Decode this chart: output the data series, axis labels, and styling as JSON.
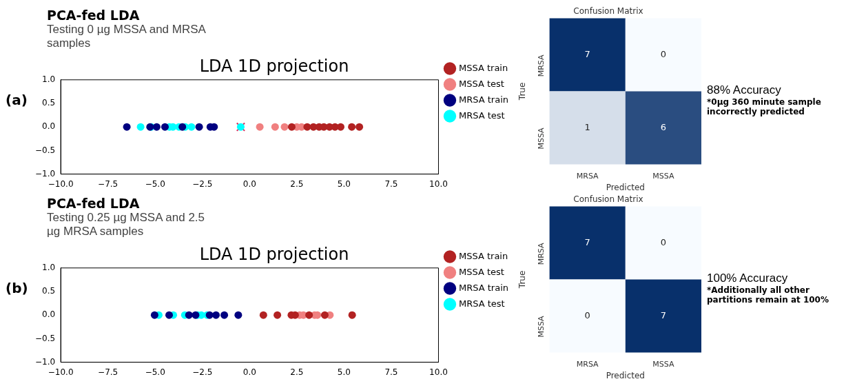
{
  "chart_data": [
    {
      "type": "scatter",
      "title": "LDA 1D projection",
      "subtitle": "Testing 0 µg MSSA and MRSA samples",
      "annotations": [
        "(a)",
        "PCA-fed LDA"
      ],
      "legend": "right",
      "marker": "circle",
      "xlim": [
        -10,
        10
      ],
      "xticks": [
        {
          "value": -10,
          "label": "−10.0"
        },
        {
          "value": -7.5,
          "label": "−7.5"
        },
        {
          "value": -5,
          "label": "−5.0"
        },
        {
          "value": -2.5,
          "label": "−2.5"
        },
        {
          "value": 0,
          "label": "0.0"
        },
        {
          "value": 2.5,
          "label": "2.5"
        },
        {
          "value": 5,
          "label": "5.0"
        },
        {
          "value": 7.5,
          "label": "7.5"
        },
        {
          "value": 10,
          "label": "10.0"
        }
      ],
      "ylim": [
        -1,
        1
      ],
      "yticks": [
        {
          "value": -1,
          "label": "−1.0"
        },
        {
          "value": -0.5,
          "label": "−0.5"
        },
        {
          "value": 0,
          "label": "0.0"
        },
        {
          "value": 0.5,
          "label": "0.5"
        },
        {
          "value": 1,
          "label": "1.0"
        }
      ],
      "series": [
        {
          "name": "MSSA train",
          "color": "#b22222",
          "x": [
            2.23,
            3.05,
            3.38,
            3.68,
            3.93,
            4.23,
            4.52,
            4.82,
            5.41,
            5.81
          ],
          "values": [
            0,
            0,
            0,
            0,
            0,
            0,
            0,
            0,
            0,
            0
          ]
        },
        {
          "name": "MSSA test",
          "color": "#f08080",
          "x": [
            0.54,
            1.35,
            1.85,
            2.5,
            2.75
          ],
          "values": [
            0,
            0,
            0,
            0,
            0
          ]
        },
        {
          "name": "MRSA train",
          "color": "#000080",
          "x": [
            -6.5,
            -5.27,
            -4.92,
            -4.48,
            -3.56,
            -2.67,
            -2.08,
            -1.88
          ],
          "values": [
            0,
            0,
            0,
            0,
            0,
            0,
            0,
            0
          ]
        },
        {
          "name": "MRSA test",
          "color": "#00ffff",
          "x": [
            -5.77,
            -5.21,
            -4.24,
            -4.06,
            -3.74,
            -3.41,
            -3.08,
            -0.47
          ],
          "values": [
            0,
            0,
            0,
            0,
            0,
            0,
            0,
            0
          ]
        },
        {
          "color": "#d62a5c",
          "marker": "cross",
          "x": [
            -0.47
          ],
          "values": [
            0
          ]
        }
      ]
    },
    {
      "type": "heatmap",
      "title": "Confusion Matrix",
      "xlabel": "Predicted",
      "ylabel": "True",
      "categories": [
        "MRSA",
        "MSSA"
      ],
      "y_categories": [
        "MRSA",
        "MSSA"
      ],
      "cells": [
        [
          7,
          0
        ],
        [
          1,
          6
        ]
      ],
      "data_labels": true,
      "annotations": [
        "88% Accuracy",
        "*0µg 360 minute sample incorrectly predicted"
      ]
    },
    {
      "type": "scatter",
      "title": "LDA 1D projection",
      "subtitle": "Testing 0.25 µg MSSA and 2.5 µg MRSA samples",
      "annotations": [
        "(b)",
        "PCA-fed LDA"
      ],
      "legend": "right",
      "marker": "circle",
      "xlim": [
        -10,
        10
      ],
      "xticks": [
        {
          "value": -10,
          "label": "−10.0"
        },
        {
          "value": -7.5,
          "label": "−7.5"
        },
        {
          "value": -5,
          "label": "−5.0"
        },
        {
          "value": -2.5,
          "label": "−2.5"
        },
        {
          "value": 0,
          "label": "0.0"
        },
        {
          "value": 2.5,
          "label": "2.5"
        },
        {
          "value": 5,
          "label": "5.0"
        },
        {
          "value": 7.5,
          "label": "7.5"
        },
        {
          "value": 10,
          "label": "10.0"
        }
      ],
      "ylim": [
        -1,
        1
      ],
      "yticks": [
        {
          "value": -1,
          "label": "−1.0"
        },
        {
          "value": -0.5,
          "label": "−0.5"
        },
        {
          "value": 0,
          "label": "0.0"
        },
        {
          "value": 0.5,
          "label": "0.5"
        },
        {
          "value": 1,
          "label": "1.0"
        }
      ],
      "series": [
        {
          "name": "MSSA train",
          "color": "#b22222",
          "x": [
            0.73,
            1.47,
            2.21,
            2.41,
            3.15,
            3.98,
            5.43
          ],
          "values": [
            0,
            0,
            0,
            0,
            0,
            0,
            0
          ]
        },
        {
          "name": "MSSA test",
          "color": "#f08080",
          "x": [
            2.65,
            2.85,
            3.44,
            3.59,
            4.25
          ],
          "values": [
            0,
            0,
            0,
            0,
            0
          ]
        },
        {
          "name": "MRSA train",
          "color": "#000080",
          "x": [
            -5.03,
            -4.26,
            -3.21,
            -2.86,
            -2.12,
            -1.78,
            -1.34,
            -0.6
          ],
          "values": [
            0,
            0,
            0,
            0,
            0,
            0,
            0,
            0
          ]
        },
        {
          "name": "MRSA test",
          "color": "#00ffff",
          "x": [
            -4.81,
            -4.04,
            -3.43,
            -2.76,
            -2.56,
            -2.25
          ],
          "values": [
            0,
            0,
            0,
            0,
            0,
            0
          ]
        }
      ]
    },
    {
      "type": "heatmap",
      "title": "Confusion Matrix",
      "xlabel": "Predicted",
      "ylabel": "True",
      "categories": [
        "MRSA",
        "MSSA"
      ],
      "y_categories": [
        "MRSA",
        "MSSA"
      ],
      "cells": [
        [
          7,
          0
        ],
        [
          0,
          7
        ]
      ],
      "data_labels": true,
      "annotations": [
        "100% Accuracy",
        "*Additionally all other partitions remain at 100%"
      ]
    }
  ]
}
